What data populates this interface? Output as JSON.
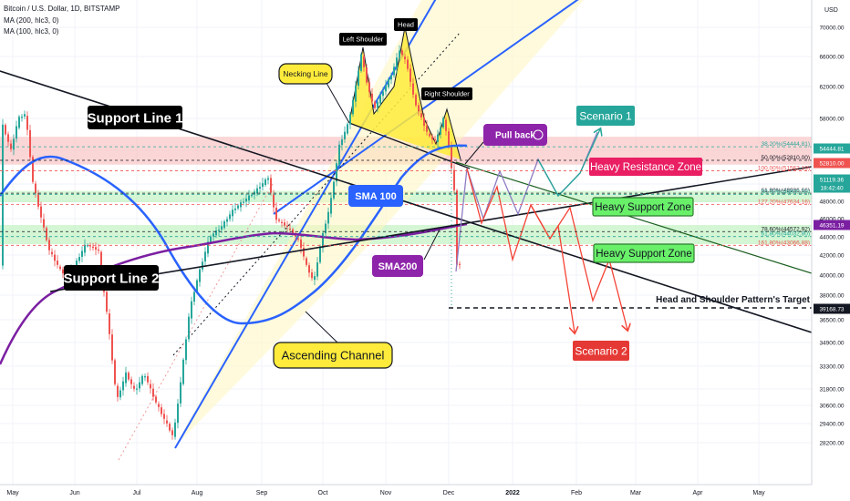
{
  "header": {
    "symbol": "Bitcoin / U.S. Dollar, 1D, BITSTAMP",
    "ma200": "MA (200, hlc3, 0)",
    "ma100": "MA (100, hlc3, 0)",
    "currency": "USD"
  },
  "colors": {
    "up": "#26a69a",
    "down": "#ef5350",
    "sma100": "#2962ff",
    "sma200": "#7b1fa2",
    "channel": "#2962ff",
    "resistance_zone": "#f8b4b4",
    "support_zone": "#b7f0b7",
    "scenario1": "#26a69a",
    "scenario2": "#f44336",
    "label_yellow": "#ffeb3b"
  },
  "chart_data": {
    "type": "candlestick",
    "x_axis_labels": [
      "May",
      "Jun",
      "Jul",
      "Aug",
      "Sep",
      "Oct",
      "Nov",
      "Dec",
      "2022",
      "Feb",
      "Mar",
      "Apr",
      "May"
    ],
    "y_axis_ticks": [
      70000,
      66000,
      62000,
      58000,
      54000,
      50000,
      48000,
      46000,
      44000,
      42000,
      40000,
      38000,
      36500,
      34900,
      33300,
      31800,
      30600,
      29400,
      28200
    ],
    "price_badges": [
      {
        "value": "54444.81",
        "color": "#26a69a"
      },
      {
        "value": "52810.00",
        "color": "#ef5350"
      },
      {
        "value": "51119.36",
        "color": "#26a69a"
      },
      {
        "value": "18:42:40",
        "color": "#26a69a"
      },
      {
        "value": "46351.19",
        "color": "#7b1fa2"
      },
      {
        "value": "39168.73",
        "color": "#131722"
      }
    ],
    "fib_levels": [
      {
        "label": "38.20%(54444.81)",
        "value": 54444.81
      },
      {
        "label": "50.00%(52810.00)",
        "value": 52810
      },
      {
        "label": "100.00%(51562.19)",
        "value": 51562.19
      },
      {
        "label": "61.80%(48936.66)",
        "value": 48936.66
      },
      {
        "label": "50.00%(48800.00)",
        "value": 48800
      },
      {
        "label": "127.20%(47634.16)",
        "value": 47634.16
      },
      {
        "label": "78.60%(44572.92)",
        "value": 44572.92
      },
      {
        "label": "61.80%(44032.80)",
        "value": 44032.8
      },
      {
        "label": "161.80%(43066.88)",
        "value": 43066.88
      }
    ],
    "annotations": {
      "support1": "Support Line 1",
      "support2": "Support Line 2",
      "necking": "Necking Line",
      "left_shoulder": "Left Shoulder",
      "head": "Head",
      "right_shoulder": "Right Shoulder",
      "pullback": "Pull back",
      "sma100": "SMA 100",
      "sma200": "SMA200",
      "scenario1": "Scenario 1",
      "scenario2": "Scenario 2",
      "heavy_resistance": "Heavy Resistance Zone",
      "heavy_support_1": "Heavy Support Zone",
      "heavy_support_2": "Heavy Support Zone",
      "target": "Head and Shoulder Pattern's Target",
      "channel": "Ascending Channel"
    }
  }
}
